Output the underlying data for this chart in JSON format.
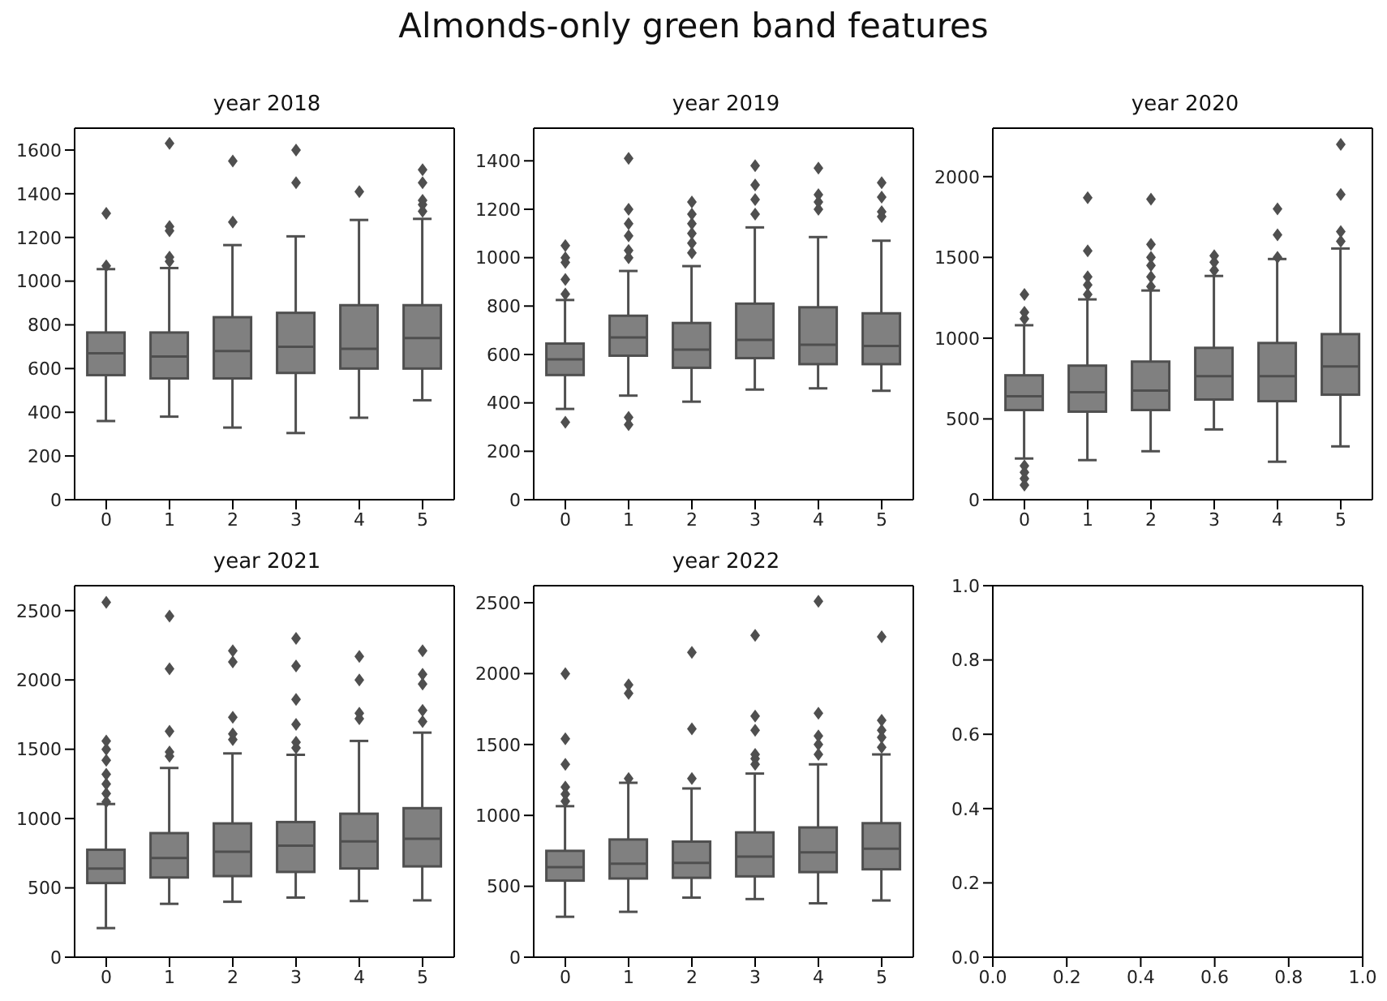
{
  "chart_data": [
    {
      "type": "box",
      "title": "year 2018",
      "annotations": [
        "Almonds-only green band features"
      ],
      "categories": [
        "0",
        "1",
        "2",
        "3",
        "4",
        "5"
      ],
      "color": "#808080",
      "ylim": [
        0,
        1700
      ],
      "yticks": [
        0,
        200,
        400,
        600,
        800,
        1000,
        1200,
        1400,
        1600
      ],
      "boxes": [
        {
          "low": 360,
          "q1": 570,
          "median": 670,
          "q3": 765,
          "high": 1055,
          "outliers": [
            1070,
            1310
          ]
        },
        {
          "low": 380,
          "q1": 555,
          "median": 655,
          "q3": 765,
          "high": 1060,
          "outliers": [
            1090,
            1110,
            1230,
            1250,
            1630
          ]
        },
        {
          "low": 330,
          "q1": 555,
          "median": 680,
          "q3": 835,
          "high": 1165,
          "outliers": [
            1270,
            1550
          ]
        },
        {
          "low": 305,
          "q1": 580,
          "median": 700,
          "q3": 855,
          "high": 1205,
          "outliers": [
            1450,
            1600
          ]
        },
        {
          "low": 375,
          "q1": 600,
          "median": 690,
          "q3": 890,
          "high": 1280,
          "outliers": [
            1410
          ]
        },
        {
          "low": 455,
          "q1": 600,
          "median": 740,
          "q3": 890,
          "high": 1285,
          "outliers": [
            1320,
            1350,
            1370,
            1450,
            1510
          ]
        }
      ]
    },
    {
      "type": "box",
      "title": "year 2019",
      "categories": [
        "0",
        "1",
        "2",
        "3",
        "4",
        "5"
      ],
      "color": "#808080",
      "ylim": [
        0,
        1535
      ],
      "yticks": [
        0,
        200,
        400,
        600,
        800,
        1000,
        1200,
        1400
      ],
      "boxes": [
        {
          "low": 375,
          "q1": 515,
          "median": 580,
          "q3": 645,
          "high": 825,
          "outliers": [
            320,
            850,
            910,
            980,
            1000,
            1050
          ]
        },
        {
          "low": 430,
          "q1": 595,
          "median": 670,
          "q3": 760,
          "high": 945,
          "outliers": [
            310,
            340,
            1000,
            1030,
            1090,
            1140,
            1200,
            1410
          ]
        },
        {
          "low": 405,
          "q1": 545,
          "median": 620,
          "q3": 730,
          "high": 965,
          "outliers": [
            1020,
            1060,
            1100,
            1140,
            1180,
            1230
          ]
        },
        {
          "low": 455,
          "q1": 585,
          "median": 660,
          "q3": 810,
          "high": 1125,
          "outliers": [
            1180,
            1240,
            1300,
            1380
          ]
        },
        {
          "low": 460,
          "q1": 560,
          "median": 640,
          "q3": 795,
          "high": 1085,
          "outliers": [
            1200,
            1230,
            1260,
            1370
          ]
        },
        {
          "low": 450,
          "q1": 560,
          "median": 635,
          "q3": 770,
          "high": 1070,
          "outliers": [
            1170,
            1190,
            1250,
            1310
          ]
        }
      ]
    },
    {
      "type": "box",
      "title": "year 2020",
      "categories": [
        "0",
        "1",
        "2",
        "3",
        "4",
        "5"
      ],
      "color": "#808080",
      "ylim": [
        0,
        2300
      ],
      "yticks": [
        0,
        500,
        1000,
        1500,
        2000
      ],
      "boxes": [
        {
          "low": 255,
          "q1": 555,
          "median": 640,
          "q3": 770,
          "high": 1080,
          "outliers": [
            90,
            130,
            170,
            210,
            1120,
            1160,
            1270
          ]
        },
        {
          "low": 245,
          "q1": 545,
          "median": 665,
          "q3": 830,
          "high": 1240,
          "outliers": [
            1270,
            1330,
            1380,
            1540,
            1870
          ]
        },
        {
          "low": 300,
          "q1": 555,
          "median": 675,
          "q3": 855,
          "high": 1295,
          "outliers": [
            1320,
            1380,
            1450,
            1500,
            1580,
            1860
          ]
        },
        {
          "low": 435,
          "q1": 620,
          "median": 765,
          "q3": 940,
          "high": 1385,
          "outliers": [
            1420,
            1470,
            1510
          ]
        },
        {
          "low": 235,
          "q1": 610,
          "median": 765,
          "q3": 970,
          "high": 1490,
          "outliers": [
            1500,
            1640,
            1800
          ]
        },
        {
          "low": 330,
          "q1": 650,
          "median": 825,
          "q3": 1025,
          "high": 1555,
          "outliers": [
            1600,
            1660,
            1890,
            2200
          ]
        }
      ]
    },
    {
      "type": "box",
      "title": "year 2021",
      "categories": [
        "0",
        "1",
        "2",
        "3",
        "4",
        "5"
      ],
      "color": "#808080",
      "ylim": [
        0,
        2680
      ],
      "yticks": [
        0,
        500,
        1000,
        1500,
        2000,
        2500
      ],
      "boxes": [
        {
          "low": 210,
          "q1": 535,
          "median": 640,
          "q3": 775,
          "high": 1105,
          "outliers": [
            1120,
            1180,
            1250,
            1320,
            1420,
            1500,
            1560,
            2560
          ]
        },
        {
          "low": 385,
          "q1": 575,
          "median": 715,
          "q3": 895,
          "high": 1365,
          "outliers": [
            1450,
            1480,
            1630,
            2080,
            2460
          ]
        },
        {
          "low": 400,
          "q1": 585,
          "median": 760,
          "q3": 965,
          "high": 1470,
          "outliers": [
            1570,
            1610,
            1730,
            2130,
            2210
          ]
        },
        {
          "low": 430,
          "q1": 615,
          "median": 805,
          "q3": 975,
          "high": 1460,
          "outliers": [
            1510,
            1550,
            1680,
            1860,
            2100,
            2300
          ]
        },
        {
          "low": 405,
          "q1": 640,
          "median": 835,
          "q3": 1035,
          "high": 1560,
          "outliers": [
            1720,
            1760,
            2000,
            2170
          ]
        },
        {
          "low": 410,
          "q1": 655,
          "median": 855,
          "q3": 1075,
          "high": 1620,
          "outliers": [
            1700,
            1780,
            1970,
            2040,
            2210
          ]
        }
      ]
    },
    {
      "type": "box",
      "title": "year 2022",
      "categories": [
        "0",
        "1",
        "2",
        "3",
        "4",
        "5"
      ],
      "color": "#808080",
      "ylim": [
        0,
        2620
      ],
      "yticks": [
        0,
        500,
        1000,
        1500,
        2000,
        2500
      ],
      "boxes": [
        {
          "low": 285,
          "q1": 540,
          "median": 635,
          "q3": 750,
          "high": 1065,
          "outliers": [
            1100,
            1150,
            1200,
            1360,
            1540,
            2000
          ]
        },
        {
          "low": 320,
          "q1": 555,
          "median": 660,
          "q3": 830,
          "high": 1230,
          "outliers": [
            1260,
            1860,
            1920
          ]
        },
        {
          "low": 420,
          "q1": 560,
          "median": 665,
          "q3": 815,
          "high": 1190,
          "outliers": [
            1260,
            1610,
            2150
          ]
        },
        {
          "low": 410,
          "q1": 570,
          "median": 710,
          "q3": 880,
          "high": 1295,
          "outliers": [
            1360,
            1400,
            1430,
            1600,
            1700,
            2270
          ]
        },
        {
          "low": 380,
          "q1": 600,
          "median": 740,
          "q3": 915,
          "high": 1360,
          "outliers": [
            1430,
            1500,
            1560,
            1720,
            2510
          ]
        },
        {
          "low": 400,
          "q1": 620,
          "median": 765,
          "q3": 945,
          "high": 1430,
          "outliers": [
            1480,
            1550,
            1600,
            1670,
            2260
          ]
        }
      ]
    },
    {
      "type": "scatter",
      "xlim": [
        0,
        1
      ],
      "ylim": [
        0,
        1
      ],
      "xticks": [
        {
          "value": 0,
          "label": "0.0"
        },
        {
          "value": 0.2,
          "label": "0.2"
        },
        {
          "value": 0.4,
          "label": "0.4"
        },
        {
          "value": 0.6,
          "label": "0.6"
        },
        {
          "value": 0.8,
          "label": "0.8"
        },
        {
          "value": 1,
          "label": "1.0"
        }
      ],
      "yticks": [
        {
          "value": 0,
          "label": "0.0"
        },
        {
          "value": 0.2,
          "label": "0.2"
        },
        {
          "value": 0.4,
          "label": "0.4"
        },
        {
          "value": 0.6,
          "label": "0.6"
        },
        {
          "value": 0.8,
          "label": "0.8"
        },
        {
          "value": 1,
          "label": "1.0"
        }
      ]
    }
  ]
}
